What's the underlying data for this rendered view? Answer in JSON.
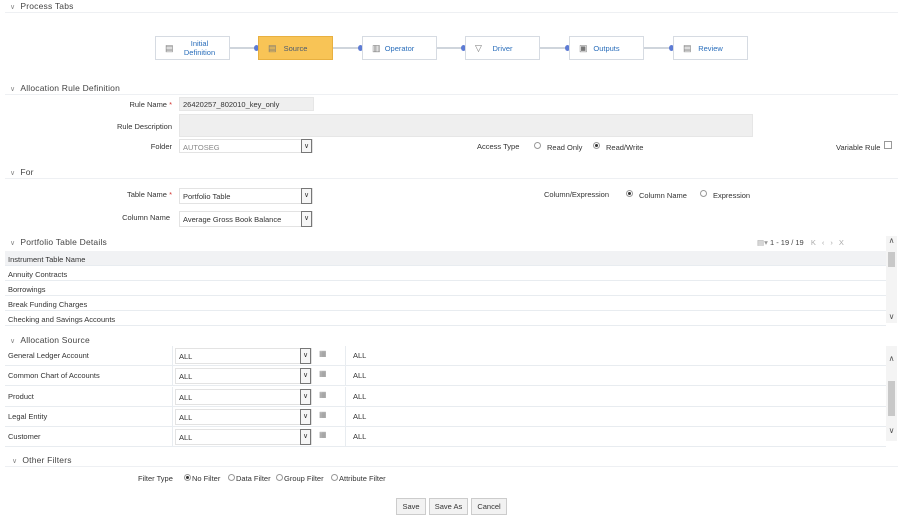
{
  "sections": {
    "process_tabs": "Process Tabs",
    "rule_definition": "Allocation Rule Definition",
    "for": "For",
    "portfolio_details": "Portfolio Table Details",
    "allocation_source": "Allocation Source",
    "other_filters": "Other Filters"
  },
  "process_tabs": [
    {
      "label": "Initial Definition",
      "icon": "document-icon",
      "active": false
    },
    {
      "label": "Source",
      "icon": "document-icon",
      "active": true
    },
    {
      "label": "Operator",
      "icon": "calculator-icon",
      "active": false
    },
    {
      "label": "Driver",
      "icon": "filter-icon",
      "active": false
    },
    {
      "label": "Outputs",
      "icon": "output-icon",
      "active": false
    },
    {
      "label": "Review",
      "icon": "review-icon",
      "active": false
    }
  ],
  "rule": {
    "name_label": "Rule Name",
    "name_value": "26420257_802010_key_only",
    "desc_label": "Rule Description",
    "desc_value": "",
    "folder_label": "Folder",
    "folder_value": "AUTOSEG",
    "access_label": "Access Type",
    "access_options": [
      "Read Only",
      "Read/Write"
    ],
    "access_selected": "Read/Write",
    "variable_label": "Variable Rule",
    "variable_checked": false
  },
  "for": {
    "table_label": "Table Name",
    "table_value": "Portfolio Table",
    "column_label": "Column Name",
    "column_value": "Average Gross Book Balance",
    "colexp_label": "Column/Expression",
    "colexp_options": [
      "Column Name",
      "Expression"
    ],
    "colexp_selected": "Column Name"
  },
  "portfolio": {
    "pager": "1 - 19 / 19",
    "header": "Instrument Table Name",
    "rows": [
      "Annuity Contracts",
      "Borrowings",
      "Break Funding Charges",
      "Checking and Savings Accounts"
    ]
  },
  "allocation_source": [
    {
      "dimension": "General Ledger Account",
      "select": "ALL",
      "value": "ALL"
    },
    {
      "dimension": "Common Chart of Accounts",
      "select": "ALL",
      "value": "ALL"
    },
    {
      "dimension": "Product",
      "select": "ALL",
      "value": "ALL"
    },
    {
      "dimension": "Legal Entity",
      "select": "ALL",
      "value": "ALL"
    },
    {
      "dimension": "Customer",
      "select": "ALL",
      "value": "ALL"
    }
  ],
  "filters": {
    "label": "Filter Type",
    "options": [
      "No Filter",
      "Data Filter",
      "Group Filter",
      "Attribute Filter"
    ],
    "selected": "No Filter"
  },
  "buttons": {
    "save": "Save",
    "save_as": "Save As",
    "cancel": "Cancel"
  },
  "colors": {
    "active_tab": "#f8c456",
    "link": "#2a6ebb",
    "required": "#d0312d"
  }
}
